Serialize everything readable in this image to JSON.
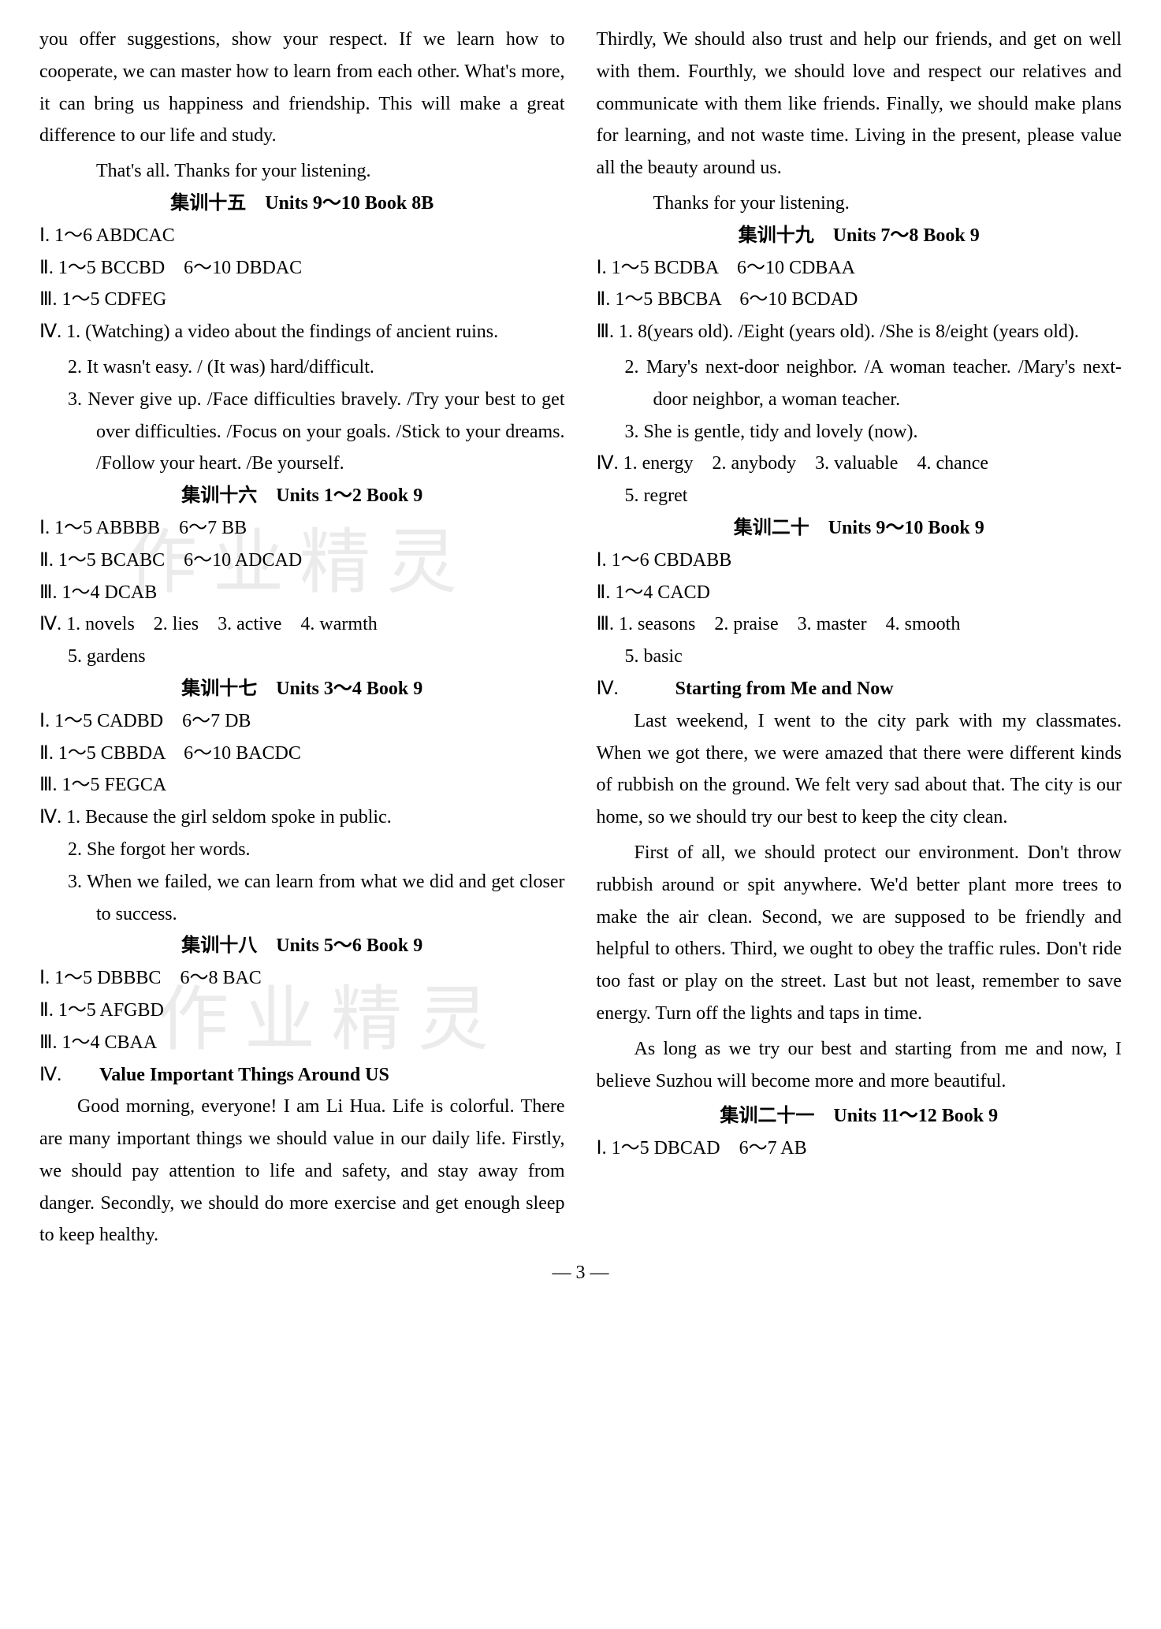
{
  "col1": {
    "intro_p1": "you offer suggestions, show your respect. If we learn how to cooperate, we can master how to learn from each other. What's more, it can bring us happiness and friendship. This will make a great difference to our life and study.",
    "closing1": "That's all. Thanks for your listening.",
    "s15": {
      "heading": "集训十五　Units 9～10 Book 8B",
      "i": "Ⅰ. 1～6 ABDCAC",
      "ii": "Ⅱ. 1～5 BCCBD　6～10 DBDAC",
      "iii": "Ⅲ. 1～5 CDFEG",
      "iv_lead": "Ⅳ. 1. (Watching) a video about the findings of ancient ruins.",
      "iv_2": "2. It wasn't easy. / (It was) hard/difficult.",
      "iv_3": "3. Never give up. /Face difficulties bravely. /Try your best to get over difficulties. /Focus on your goals. /Stick to your dreams. /Follow your heart. /Be yourself."
    },
    "s16": {
      "heading": "集训十六　Units 1～2 Book 9",
      "i": "Ⅰ. 1～5 ABBBB　6～7 BB",
      "ii": "Ⅱ. 1～5 BCABC　6～10 ADCAD",
      "iii": "Ⅲ. 1～4 DCAB",
      "iv_lead": "Ⅳ. 1. novels　2. lies　3. active　4. warmth",
      "iv_5": "5. gardens"
    },
    "s17": {
      "heading": "集训十七　Units 3～4 Book 9",
      "i": "Ⅰ. 1～5 CADBD　6～7 DB",
      "ii": "Ⅱ. 1～5 CBBDA　6～10 BACDC",
      "iii": "Ⅲ. 1～5 FEGCA",
      "iv_1": "Ⅳ. 1. Because the girl seldom spoke in public.",
      "iv_2": "2. She forgot her words.",
      "iv_3": "3. When we failed, we can learn from what we did and get closer to success."
    },
    "s18": {
      "heading": "集训十八　Units 5～6 Book 9",
      "i": "Ⅰ. 1～5 DBBBC　6～8 BAC",
      "ii": "Ⅱ. 1～5 AFGBD",
      "iii": "Ⅲ. 1～4 CBAA",
      "iv_label": "Ⅳ.",
      "essay_title": "Value Important Things Around US",
      "essay_p1": "Good morning, everyone! I am Li Hua. Life is colorful. There are many important things we should value in our daily life. Firstly, we should pay attention to life and safety, and stay away from danger. Secondly, we should do more exercise and get enough sleep to keep healthy."
    }
  },
  "col2": {
    "cont_p1": "Thirdly, We should also trust and help our friends, and get on well with them. Fourthly, we should love and respect our relatives and communicate with them like friends. Finally, we should make plans for learning, and not waste time. Living in the present, please value all the beauty around us.",
    "closing2": "Thanks for your listening.",
    "s19": {
      "heading": "集训十九　Units 7～8 Book 9",
      "i": "Ⅰ. 1～5 BCDBA　6～10 CDBAA",
      "ii": "Ⅱ. 1～5 BBCBA　6～10 BCDAD",
      "iii_1": "Ⅲ. 1. 8(years old). /Eight (years old). /She is 8/eight (years old).",
      "iii_2": "2. Mary's next-door neighbor. /A woman teacher. /Mary's next-door neighbor, a woman teacher.",
      "iii_3": "3. She is gentle, tidy and lovely (now).",
      "iv_lead": "Ⅳ. 1. energy　2. anybody　3. valuable　4. chance",
      "iv_5": "5. regret"
    },
    "s20": {
      "heading": "集训二十　Units 9～10 Book 9",
      "i": "Ⅰ. 1～6 CBDABB",
      "ii": "Ⅱ. 1～4 CACD",
      "iii_lead": "Ⅲ. 1. seasons　2. praise　3. master　4. smooth",
      "iii_5": "5. basic",
      "iv_label": "Ⅳ.",
      "essay_title": "Starting from Me and Now",
      "essay_p1": "Last weekend, I went to the city park with my classmates. When we got there, we were amazed that there were different kinds of rubbish on the ground. We felt very sad about that. The city is our home, so we should try our best to keep the city clean.",
      "essay_p2": "First of all, we should protect our environment. Don't throw rubbish around or spit anywhere. We'd better plant more trees to make the air clean. Second, we are supposed to be friendly and helpful to others. Third, we ought to obey the traffic rules. Don't ride too fast or play on the street. Last but not least, remember to save energy. Turn off the lights and taps in time.",
      "essay_p3": "As long as we try our best and starting from me and now, I believe Suzhou will become more and more beautiful."
    },
    "s21": {
      "heading": "集训二十一　Units 11～12 Book 9",
      "i": "Ⅰ. 1～5 DBCAD　6～7 AB"
    }
  },
  "page_number": "3",
  "watermark1": "作业精灵",
  "watermark2": "作业精灵"
}
